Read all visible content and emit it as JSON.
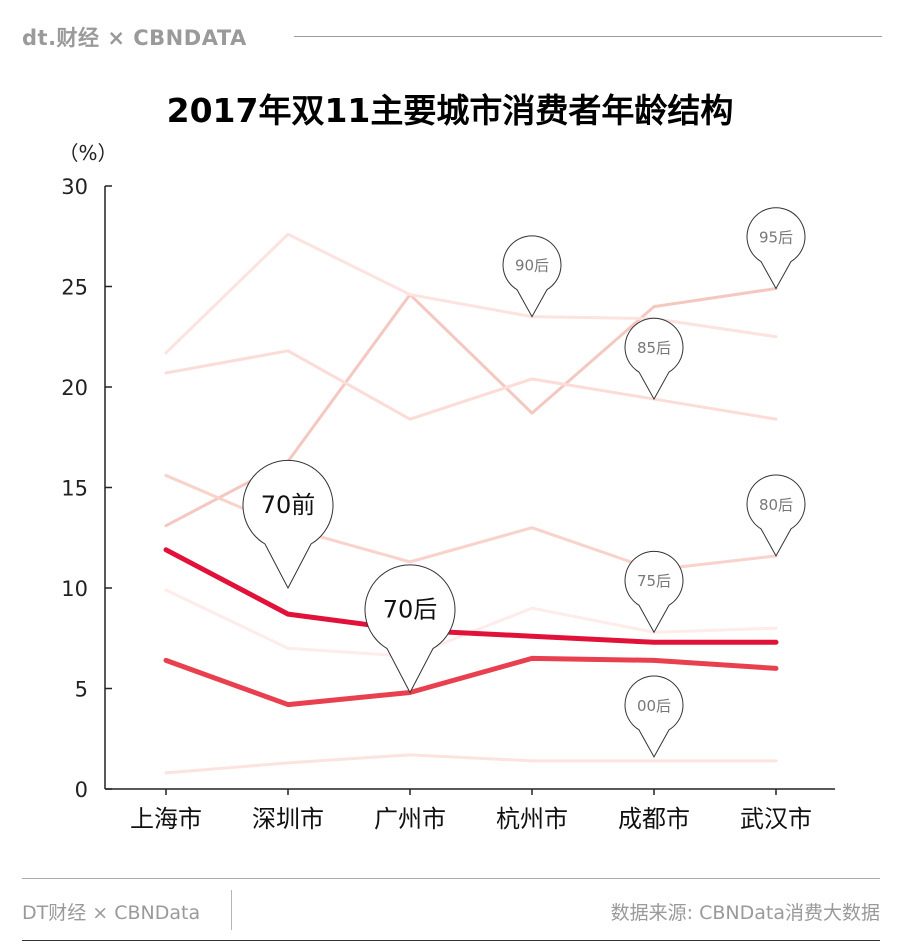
{
  "header": {
    "brand": "dt.财经 × CBNDATA"
  },
  "footer": {
    "left": "DT财经 × CBNData",
    "right": "数据来源: CBNData消费大数据"
  },
  "colors": {
    "strong": "#e0123a",
    "medium": "#e8404e",
    "axis": "#222222",
    "marker_stroke": "#333333"
  },
  "chart_data": {
    "type": "line",
    "title": "2017年双11主要城市消费者年龄结构",
    "xlabel": "",
    "ylabel": "（%）",
    "ylim": [
      0,
      30
    ],
    "yticks": [
      0,
      5,
      10,
      15,
      20,
      25,
      30
    ],
    "grid": false,
    "categories": [
      "上海市",
      "深圳市",
      "广州市",
      "杭州市",
      "成都市",
      "武汉市"
    ],
    "series": [
      {
        "name": "95后",
        "values": [
          13.1,
          16.3,
          24.6,
          18.7,
          24.0,
          24.9
        ],
        "color": "#f4c8c0",
        "width": 3
      },
      {
        "name": "90后",
        "values": [
          21.7,
          27.6,
          24.6,
          23.5,
          23.4,
          22.5
        ],
        "color": "#fce3df",
        "width": 3
      },
      {
        "name": "85后",
        "values": [
          20.7,
          21.8,
          18.4,
          20.4,
          19.4,
          18.4
        ],
        "color": "#fcdcd7",
        "width": 3
      },
      {
        "name": "80后",
        "values": [
          15.6,
          13.0,
          11.3,
          13.0,
          10.9,
          11.6
        ],
        "color": "#f8d2cb",
        "width": 3
      },
      {
        "name": "75后",
        "values": [
          9.9,
          7.0,
          6.6,
          9.0,
          7.8,
          8.0
        ],
        "color": "#fdecea",
        "width": 3
      },
      {
        "name": "70前",
        "values": [
          11.9,
          8.7,
          7.9,
          7.6,
          7.3,
          7.3
        ],
        "color": "#e0123a",
        "width": 5
      },
      {
        "name": "70后",
        "values": [
          6.4,
          4.2,
          4.8,
          6.5,
          6.4,
          6.0
        ],
        "color": "#e8404e",
        "width": 5
      },
      {
        "name": "00后",
        "values": [
          0.8,
          1.3,
          1.7,
          1.4,
          1.4,
          1.4
        ],
        "color": "#fce3df",
        "width": 3
      }
    ],
    "markers": [
      {
        "label": "95后",
        "series": "95后",
        "category": "武汉市",
        "size": "small"
      },
      {
        "label": "90后",
        "series": "90后",
        "category": "杭州市",
        "size": "small"
      },
      {
        "label": "85后",
        "series": "85后",
        "category": "成都市",
        "size": "small"
      },
      {
        "label": "80后",
        "series": "80后",
        "category": "武汉市",
        "size": "small"
      },
      {
        "label": "75后",
        "series": "75后",
        "category": "成都市",
        "size": "small"
      },
      {
        "label": "00后",
        "series": "00后",
        "category": "成都市",
        "size": "small",
        "value": 1.6
      },
      {
        "label": "70前",
        "series": "70前",
        "category": "深圳市",
        "size": "large",
        "value": 10.0
      },
      {
        "label": "70后",
        "series": "70后",
        "category": "广州市",
        "size": "large"
      }
    ]
  }
}
